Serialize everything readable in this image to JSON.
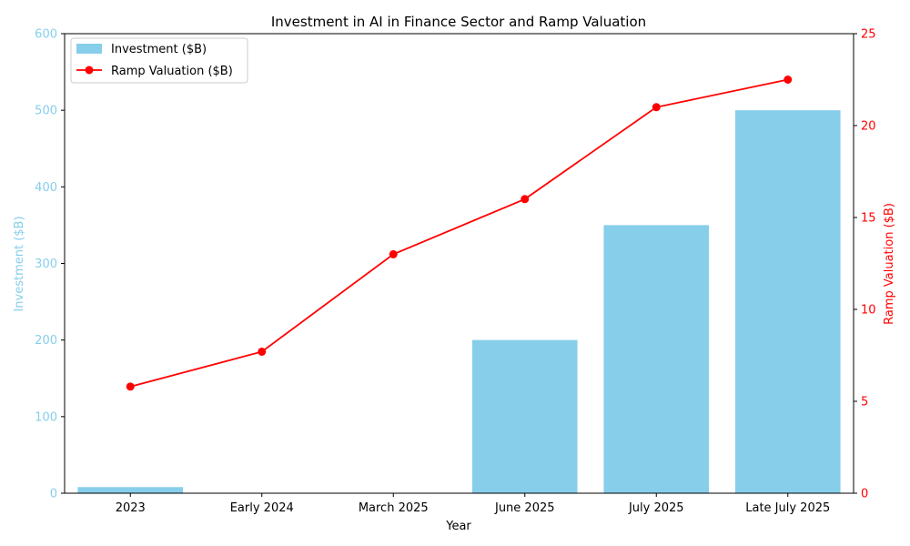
{
  "chart_data": {
    "type": "bar",
    "title": "Investment in AI in Finance Sector and Ramp Valuation",
    "xlabel": "Year",
    "categories": [
      "2023",
      "Early 2024",
      "March 2025",
      "June 2025",
      "July 2025",
      "Late July 2025"
    ],
    "series": [
      {
        "name": "Investment ($B)",
        "type": "bar",
        "axis": "left",
        "color": "#87CEEB",
        "values": [
          8,
          0,
          0,
          200,
          350,
          500
        ]
      },
      {
        "name": "Ramp Valuation ($B)",
        "type": "line",
        "axis": "right",
        "color": "#FF0000",
        "values": [
          5.8,
          7.7,
          13,
          16,
          21,
          22.5
        ]
      }
    ],
    "y_left": {
      "label": "Investment ($B)",
      "range": [
        0,
        600
      ],
      "ticks": [
        0,
        100,
        200,
        300,
        400,
        500,
        600
      ],
      "color": "#87CEEB"
    },
    "y_right": {
      "label": "Ramp Valuation ($B)",
      "range": [
        0,
        25
      ],
      "ticks": [
        0,
        5,
        10,
        15,
        20,
        25
      ],
      "color": "#FF0000"
    },
    "grid": false,
    "legend_position": "top-left"
  }
}
